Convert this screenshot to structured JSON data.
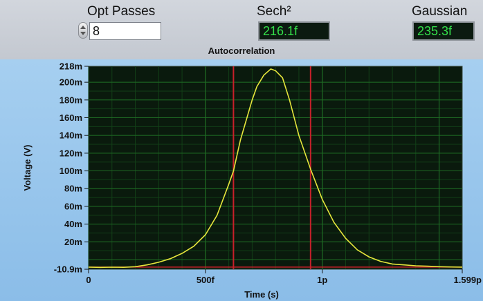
{
  "controls": {
    "opt_passes": {
      "label": "Opt Passes",
      "value": "8"
    },
    "sech": {
      "label": "Sech²",
      "value": "216.1f"
    },
    "gaussian": {
      "label": "Gaussian",
      "value": "235.3f"
    }
  },
  "colors": {
    "plot_bg": "#0a1a0d",
    "grid_major": "#1f6b24",
    "grid_minor": "#123f17",
    "trace": "#e6e63c",
    "cursor": "#c8202a",
    "indicator_text": "#34e04a"
  },
  "icons": [
    "stepper-up-icon",
    "stepper-down-icon"
  ],
  "chart_data": {
    "type": "line",
    "title": "Autocorrelation",
    "xlabel": "Time (s)",
    "ylabel": "Voltage (V)",
    "xlim": [
      0,
      1.599
    ],
    "ylim": [
      -0.0109,
      0.218
    ],
    "x_tick_labels": [
      "0",
      "500f",
      "1p",
      "1.599p"
    ],
    "x_ticks": [
      0,
      0.5,
      1.0,
      1.599
    ],
    "y_tick_labels": [
      "218m",
      "200m",
      "180m",
      "160m",
      "140m",
      "120m",
      "100m",
      "80m",
      "60m",
      "40m",
      "20m",
      "-10.9m"
    ],
    "y_ticks": [
      0.218,
      0.2,
      0.18,
      0.16,
      0.14,
      0.12,
      0.1,
      0.08,
      0.06,
      0.04,
      0.02,
      -0.0109
    ],
    "grid": true,
    "cursors": [
      0.62,
      0.95
    ],
    "series": [
      {
        "x": [
          0,
          0.05,
          0.1,
          0.15,
          0.2,
          0.25,
          0.3,
          0.35,
          0.4,
          0.45,
          0.5,
          0.55,
          0.6,
          0.62,
          0.65,
          0.7,
          0.72,
          0.75,
          0.78,
          0.8,
          0.83,
          0.86,
          0.9,
          0.95,
          1.0,
          1.05,
          1.1,
          1.15,
          1.2,
          1.25,
          1.3,
          1.35,
          1.4,
          1.45,
          1.5,
          1.55,
          1.599
        ],
        "y": [
          -0.0085,
          -0.0088,
          -0.0086,
          -0.0087,
          -0.008,
          -0.006,
          -0.003,
          0.001,
          0.007,
          0.015,
          0.028,
          0.05,
          0.085,
          0.1,
          0.135,
          0.18,
          0.195,
          0.208,
          0.215,
          0.213,
          0.205,
          0.18,
          0.14,
          0.102,
          0.068,
          0.042,
          0.024,
          0.011,
          0.003,
          -0.002,
          -0.005,
          -0.006,
          -0.007,
          -0.0075,
          -0.008,
          -0.0083,
          -0.0085
        ]
      }
    ]
  }
}
